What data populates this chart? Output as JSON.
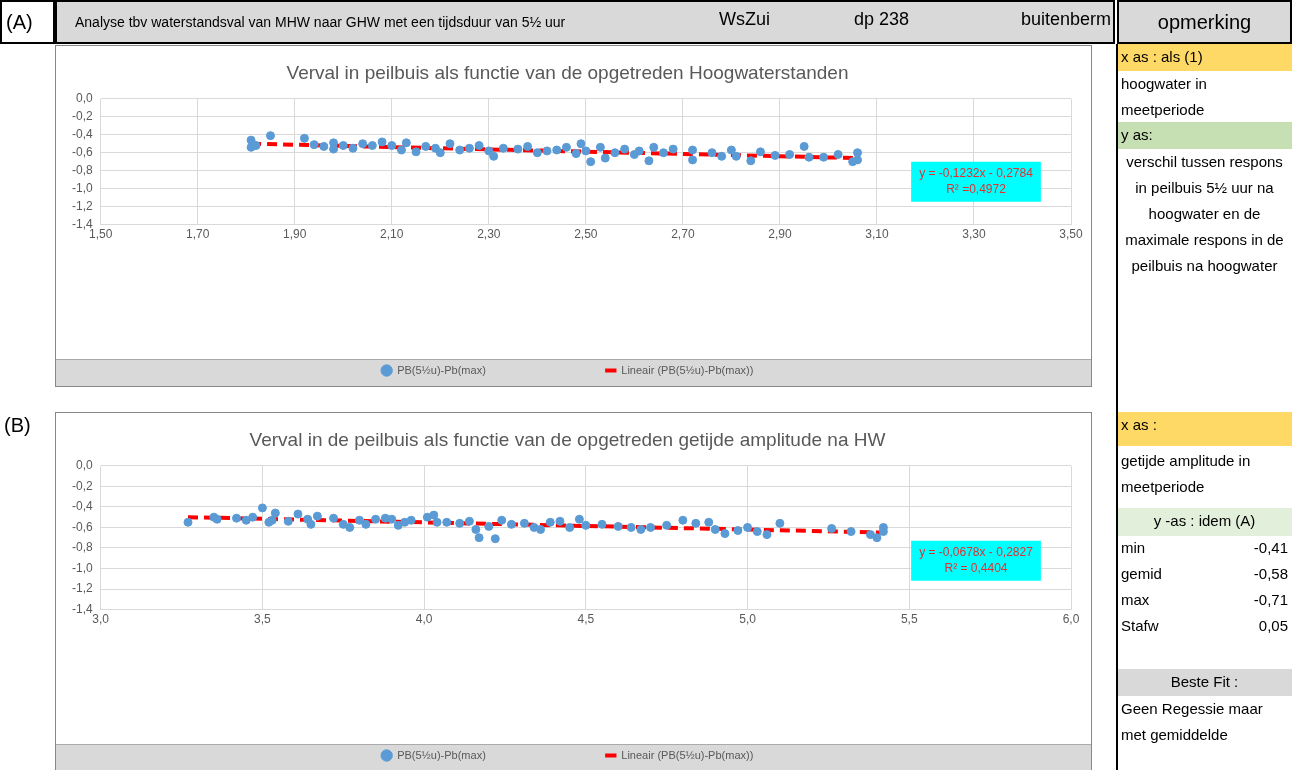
{
  "chart_data": [
    {
      "type": "scatter",
      "title": "Verval in peilbuis als functie van de opgetreden Hoogwaterstanden",
      "xlim": [
        1.5,
        3.5
      ],
      "ylim": [
        -1.4,
        0
      ],
      "xticks": [
        {
          "value": 1.5,
          "label": "1,50"
        },
        {
          "value": 1.7,
          "label": "1,70"
        },
        {
          "value": 1.9,
          "label": "1,90"
        },
        {
          "value": 2.1,
          "label": "2,10"
        },
        {
          "value": 2.3,
          "label": "2,30"
        },
        {
          "value": 2.5,
          "label": "2,50"
        },
        {
          "value": 2.7,
          "label": "2,70"
        },
        {
          "value": 2.9,
          "label": "2,90"
        },
        {
          "value": 3.1,
          "label": "3,10"
        },
        {
          "value": 3.3,
          "label": "3,30"
        },
        {
          "value": 3.5,
          "label": "3,50"
        }
      ],
      "yticks": [
        {
          "value": 0,
          "label": "0,0"
        },
        {
          "value": -0.2,
          "label": "-0,2"
        },
        {
          "value": -0.4,
          "label": "-0,4"
        },
        {
          "value": -0.6,
          "label": "-0,6"
        },
        {
          "value": -0.8,
          "label": "-0,8"
        },
        {
          "value": -1,
          "label": "-1,0"
        },
        {
          "value": -1.2,
          "label": "-1,2"
        },
        {
          "value": -1.4,
          "label": "-1,4"
        }
      ],
      "grid": true,
      "legend": "bottom",
      "annotations": [
        "y = -0,1232x - 0,2784",
        "R² =0,4972"
      ],
      "series": [
        {
          "type": "scatter",
          "name": "PB(5½u)-Pb(max)",
          "color": "#5b9bd5",
          "marker": "circle",
          "x": [
            1.81,
            1.81,
            1.82,
            1.85,
            1.92,
            1.94,
            1.96,
            1.98,
            1.98,
            2.0,
            2.02,
            2.04,
            2.06,
            2.08,
            2.1,
            2.12,
            2.13,
            2.15,
            2.17,
            2.19,
            2.2,
            2.22,
            2.24,
            2.26,
            2.28,
            2.3,
            2.31,
            2.33,
            2.36,
            2.38,
            2.4,
            2.42,
            2.44,
            2.46,
            2.48,
            2.49,
            2.5,
            2.51,
            2.53,
            2.54,
            2.56,
            2.58,
            2.6,
            2.61,
            2.63,
            2.64,
            2.66,
            2.68,
            2.72,
            2.72,
            2.76,
            2.78,
            2.8,
            2.81,
            2.84,
            2.86,
            2.89,
            2.92,
            2.95,
            2.96,
            2.99,
            3.02,
            3.05,
            3.06,
            3.06
          ],
          "values": [
            -0.46,
            -0.54,
            -0.52,
            -0.41,
            -0.44,
            -0.51,
            -0.53,
            -0.49,
            -0.56,
            -0.52,
            -0.55,
            -0.5,
            -0.52,
            -0.48,
            -0.52,
            -0.57,
            -0.49,
            -0.59,
            -0.53,
            -0.55,
            -0.6,
            -0.5,
            -0.57,
            -0.55,
            -0.52,
            -0.58,
            -0.64,
            -0.55,
            -0.56,
            -0.53,
            -0.6,
            -0.58,
            -0.57,
            -0.54,
            -0.61,
            -0.5,
            -0.58,
            -0.7,
            -0.54,
            -0.66,
            -0.6,
            -0.56,
            -0.62,
            -0.58,
            -0.69,
            -0.54,
            -0.6,
            -0.56,
            -0.57,
            -0.68,
            -0.6,
            -0.64,
            -0.57,
            -0.64,
            -0.69,
            -0.59,
            -0.63,
            -0.62,
            -0.53,
            -0.65,
            -0.65,
            -0.62,
            -0.7,
            -0.6,
            -0.68
          ]
        },
        {
          "type": "line",
          "name": "Lineair (PB(5½u)-Pb(max))",
          "color": "#ff0000",
          "line_style": "dashed",
          "marker": "none",
          "x": [
            1.81,
            3.06
          ],
          "values": [
            -0.5,
            -0.66
          ]
        }
      ]
    },
    {
      "type": "scatter",
      "title": "Verval in de peilbuis als functie van de opgetreden getijde amplitude na HW",
      "xlim": [
        3,
        6
      ],
      "ylim": [
        -1.4,
        0
      ],
      "xticks": [
        {
          "value": 3,
          "label": "3,0"
        },
        {
          "value": 3.5,
          "label": "3,5"
        },
        {
          "value": 4,
          "label": "4,0"
        },
        {
          "value": 4.5,
          "label": "4,5"
        },
        {
          "value": 5,
          "label": "5,0"
        },
        {
          "value": 5.5,
          "label": "5,5"
        },
        {
          "value": 6,
          "label": "6,0"
        }
      ],
      "yticks": [
        {
          "value": 0,
          "label": "0,0"
        },
        {
          "value": -0.2,
          "label": "-0,2"
        },
        {
          "value": -0.4,
          "label": "-0,4"
        },
        {
          "value": -0.6,
          "label": "-0,6"
        },
        {
          "value": -0.8,
          "label": "-0,8"
        },
        {
          "value": -1,
          "label": "-1,0"
        },
        {
          "value": -1.2,
          "label": "-1,2"
        },
        {
          "value": -1.4,
          "label": "-1,4"
        }
      ],
      "grid": true,
      "legend": "bottom",
      "annotations": [
        "y = -0,0678x - 0,2827",
        "R² = 0,4404"
      ],
      "series": [
        {
          "type": "scatter",
          "name": "PB(5½u)-Pb(max)",
          "color": "#5b9bd5",
          "marker": "circle",
          "x": [
            3.27,
            3.35,
            3.36,
            3.42,
            3.45,
            3.47,
            3.5,
            3.52,
            3.53,
            3.54,
            3.58,
            3.61,
            3.64,
            3.65,
            3.67,
            3.72,
            3.75,
            3.77,
            3.8,
            3.82,
            3.85,
            3.88,
            3.9,
            3.92,
            3.94,
            3.96,
            4.01,
            4.03,
            4.04,
            4.07,
            4.11,
            4.14,
            4.16,
            4.17,
            4.2,
            4.22,
            4.24,
            4.27,
            4.31,
            4.34,
            4.36,
            4.39,
            4.42,
            4.45,
            4.48,
            4.5,
            4.55,
            4.6,
            4.64,
            4.67,
            4.7,
            4.75,
            4.8,
            4.84,
            4.88,
            4.9,
            4.93,
            4.97,
            5.0,
            5.03,
            5.06,
            5.1,
            5.26,
            5.32,
            5.38,
            5.4,
            5.42,
            5.42
          ],
          "values": [
            -0.55,
            -0.5,
            -0.52,
            -0.51,
            -0.53,
            -0.5,
            -0.41,
            -0.55,
            -0.53,
            -0.46,
            -0.54,
            -0.47,
            -0.52,
            -0.57,
            -0.49,
            -0.51,
            -0.57,
            -0.6,
            -0.53,
            -0.57,
            -0.52,
            -0.51,
            -0.52,
            -0.58,
            -0.55,
            -0.53,
            -0.5,
            -0.48,
            -0.55,
            -0.55,
            -0.56,
            -0.54,
            -0.62,
            -0.7,
            -0.59,
            -0.71,
            -0.53,
            -0.57,
            -0.56,
            -0.6,
            -0.62,
            -0.55,
            -0.54,
            -0.6,
            -0.52,
            -0.58,
            -0.57,
            -0.59,
            -0.6,
            -0.62,
            -0.6,
            -0.58,
            -0.53,
            -0.56,
            -0.55,
            -0.62,
            -0.66,
            -0.63,
            -0.6,
            -0.64,
            -0.67,
            -0.56,
            -0.61,
            -0.64,
            -0.67,
            -0.7,
            -0.6,
            -0.64
          ]
        },
        {
          "type": "line",
          "name": "Lineair (PB(5½u)-Pb(max))",
          "color": "#ff0000",
          "line_style": "dashed",
          "marker": "none",
          "x": [
            3.27,
            5.42
          ],
          "values": [
            -0.5,
            -0.65
          ]
        }
      ]
    },
    {
      "type": "other",
      "title": "Analyse tbv waterstandsval van MHW naar GHW met een tijdsduur van 5½ uur",
      "annotations": [
        "(A)",
        "WsZui",
        "dp 238",
        "buitenberm",
        "opmerking",
        "x as : als (1)",
        "hoogwater in meetperiode",
        "y as:",
        "verschil tussen respons in peilbuis 5½ uur na hoogwater en de maximale respons in de peilbuis na hoogwater",
        "(B)",
        "x as :",
        "getijde amplitude in meetperiode",
        "y -as : idem (A)",
        "min",
        "-0,41",
        "gemid",
        "-0,58",
        "max",
        "-0,71",
        "Stafw",
        "0,05",
        "Beste Fit :",
        "Geen Regessie maar met gemiddelde"
      ]
    }
  ]
}
